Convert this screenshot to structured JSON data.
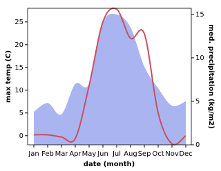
{
  "chart_data": {
    "type": "line-area",
    "xlabel": "date (month)",
    "ylabel": "max temp (C)",
    "y2label": "med. precipitation (kg/m2)",
    "categories": [
      "Jan",
      "Feb",
      "Mar",
      "Apr",
      "May",
      "Jun",
      "Jul",
      "Aug",
      "Sep",
      "Oct",
      "Nov",
      "Dec"
    ],
    "series": [
      {
        "name": "med. precipitation",
        "type": "area",
        "axis": "y2",
        "color": "#aab4f0",
        "values": [
          3.8,
          4.8,
          3.5,
          7,
          7,
          14,
          15,
          13.5,
          9,
          6.5,
          4.5,
          5
        ]
      },
      {
        "name": "max temp",
        "type": "line",
        "color": "#c8505f",
        "values": [
          0.2,
          0.2,
          -0.3,
          -0.6,
          11,
          25,
          27.8,
          21.4,
          22.4,
          5,
          -1.8,
          0
        ]
      }
    ],
    "ylim": [
      -2,
      28
    ],
    "yticks": [
      0,
      5,
      10,
      15,
      20,
      25
    ],
    "y2lim": [
      0,
      15.7
    ],
    "y2ticks": [
      0,
      5,
      10,
      15
    ]
  }
}
